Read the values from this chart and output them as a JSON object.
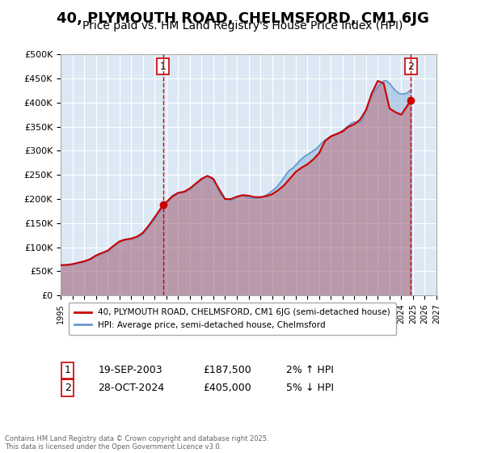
{
  "title": "40, PLYMOUTH ROAD, CHELMSFORD, CM1 6JG",
  "subtitle": "Price paid vs. HM Land Registry's House Price Index (HPI)",
  "title_fontsize": 13,
  "subtitle_fontsize": 10,
  "background_color": "#ffffff",
  "plot_bg_color": "#dce9f5",
  "grid_color": "#ffffff",
  "legend_label_red": "40, PLYMOUTH ROAD, CHELMSFORD, CM1 6JG (semi-detached house)",
  "legend_label_blue": "HPI: Average price, semi-detached house, Chelmsford",
  "red_color": "#cc0000",
  "blue_color": "#6699cc",
  "annotation1_date": "19-SEP-2003",
  "annotation1_price": "£187,500",
  "annotation1_hpi": "2% ↑ HPI",
  "annotation2_date": "28-OCT-2024",
  "annotation2_price": "£405,000",
  "annotation2_hpi": "5% ↓ HPI",
  "vline1_x": 2003.72,
  "vline2_x": 2024.83,
  "marker1_y": 187500,
  "marker2_y": 405000,
  "ylim": [
    0,
    500000
  ],
  "xlim": [
    1995,
    2027
  ],
  "copyright_text": "Contains HM Land Registry data © Crown copyright and database right 2025.\nThis data is licensed under the Open Government Licence v3.0.",
  "hpi_x": [
    1995,
    1995.25,
    1995.5,
    1995.75,
    1996,
    1996.25,
    1996.5,
    1996.75,
    1997,
    1997.25,
    1997.5,
    1997.75,
    1998,
    1998.25,
    1998.5,
    1998.75,
    1999,
    1999.25,
    1999.5,
    1999.75,
    2000,
    2000.25,
    2000.5,
    2000.75,
    2001,
    2001.25,
    2001.5,
    2001.75,
    2002,
    2002.25,
    2002.5,
    2002.75,
    2003,
    2003.25,
    2003.5,
    2003.75,
    2004,
    2004.25,
    2004.5,
    2004.75,
    2005,
    2005.25,
    2005.5,
    2005.75,
    2006,
    2006.25,
    2006.5,
    2006.75,
    2007,
    2007.25,
    2007.5,
    2007.75,
    2008,
    2008.25,
    2008.5,
    2008.75,
    2009,
    2009.25,
    2009.5,
    2009.75,
    2010,
    2010.25,
    2010.5,
    2010.75,
    2011,
    2011.25,
    2011.5,
    2011.75,
    2012,
    2012.25,
    2012.5,
    2012.75,
    2013,
    2013.25,
    2013.5,
    2013.75,
    2014,
    2014.25,
    2014.5,
    2014.75,
    2015,
    2015.25,
    2015.5,
    2015.75,
    2016,
    2016.25,
    2016.5,
    2016.75,
    2017,
    2017.25,
    2017.5,
    2017.75,
    2018,
    2018.25,
    2018.5,
    2018.75,
    2019,
    2019.25,
    2019.5,
    2019.75,
    2020,
    2020.25,
    2020.5,
    2020.75,
    2021,
    2021.25,
    2021.5,
    2021.75,
    2022,
    2022.25,
    2022.5,
    2022.75,
    2023,
    2023.25,
    2023.5,
    2023.75,
    2024,
    2024.25,
    2024.5,
    2024.75
  ],
  "hpi_y": [
    62000,
    62500,
    63000,
    63500,
    64000,
    65000,
    66500,
    68000,
    70000,
    73000,
    76000,
    79000,
    82000,
    85000,
    87000,
    89000,
    92000,
    96000,
    101000,
    106000,
    111000,
    115000,
    116000,
    116000,
    117000,
    119000,
    121000,
    124000,
    128000,
    135000,
    142000,
    150000,
    158000,
    167000,
    176000,
    185000,
    191000,
    200000,
    207000,
    210000,
    212000,
    213000,
    215000,
    217000,
    220000,
    225000,
    230000,
    235000,
    240000,
    245000,
    248000,
    245000,
    238000,
    228000,
    215000,
    205000,
    200000,
    198000,
    198000,
    200000,
    204000,
    207000,
    207000,
    205000,
    203000,
    202000,
    202000,
    202000,
    203000,
    205000,
    208000,
    212000,
    217000,
    222000,
    228000,
    236000,
    244000,
    253000,
    260000,
    264000,
    270000,
    277000,
    283000,
    288000,
    292000,
    296000,
    300000,
    304000,
    310000,
    317000,
    322000,
    326000,
    330000,
    333000,
    335000,
    338000,
    342000,
    347000,
    352000,
    357000,
    360000,
    358000,
    360000,
    368000,
    382000,
    400000,
    415000,
    425000,
    433000,
    440000,
    445000,
    445000,
    440000,
    432000,
    425000,
    420000,
    418000,
    418000,
    420000,
    425000
  ],
  "price_x": [
    1995.0,
    1995.5,
    1996.0,
    1997.0,
    1997.5,
    1998.0,
    1998.5,
    1999.0,
    1999.5,
    2000.0,
    2000.5,
    2001.0,
    2001.5,
    2002.0,
    2002.5,
    2003.0,
    2003.72,
    2004.5,
    2005.0,
    2005.5,
    2006.0,
    2006.5,
    2007.0,
    2007.5,
    2008.0,
    2008.5,
    2009.0,
    2009.5,
    2010.0,
    2010.5,
    2011.0,
    2011.5,
    2012.0,
    2012.5,
    2013.0,
    2013.5,
    2014.0,
    2014.5,
    2015.0,
    2015.5,
    2016.0,
    2016.5,
    2017.0,
    2017.5,
    2018.0,
    2018.5,
    2019.0,
    2019.5,
    2020.0,
    2020.5,
    2021.0,
    2021.5,
    2022.0,
    2022.5,
    2023.0,
    2023.5,
    2024.0,
    2024.83
  ],
  "price_y": [
    63000,
    63500,
    65000,
    71000,
    75000,
    83000,
    88000,
    93000,
    103000,
    112000,
    116000,
    118000,
    122000,
    130000,
    145000,
    162000,
    187500,
    205000,
    213000,
    215000,
    222000,
    232000,
    242000,
    248000,
    242000,
    220000,
    200000,
    200000,
    205000,
    208000,
    207000,
    204000,
    204000,
    206000,
    210000,
    218000,
    228000,
    242000,
    256000,
    265000,
    272000,
    282000,
    295000,
    320000,
    330000,
    335000,
    340000,
    350000,
    355000,
    365000,
    385000,
    420000,
    445000,
    440000,
    388000,
    380000,
    375000,
    405000
  ]
}
